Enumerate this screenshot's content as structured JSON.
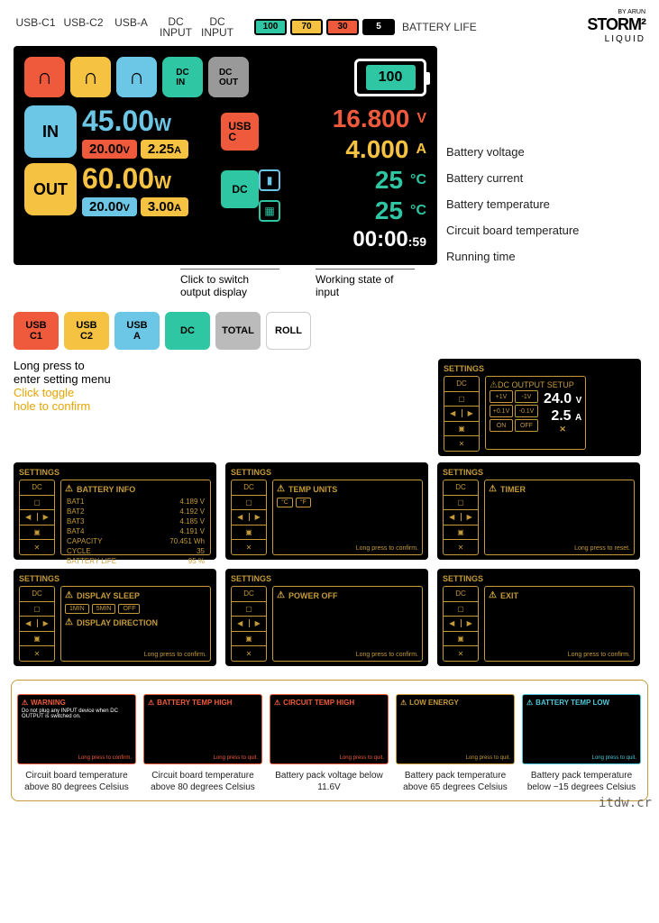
{
  "header": {
    "ports": [
      "USB-C1",
      "USB-C2",
      "USB-A",
      "DC\nINPUT",
      "DC\nINPUT"
    ],
    "pills": [
      {
        "val": "100",
        "bg": "#2fc6a3"
      },
      {
        "val": "70",
        "bg": "#f5c242"
      },
      {
        "val": "30",
        "bg": "#f05a3c"
      },
      {
        "val": "5",
        "bg": "#000",
        "fg": "#fff"
      }
    ],
    "battery_life": "BATTERY LIFE",
    "logo_pre": "BY ARUN",
    "logo_brand": "STORM²",
    "logo_sub": "LIQUID"
  },
  "display": {
    "ports": [
      {
        "bg": "#f05a3c",
        "icon": "⌒"
      },
      {
        "bg": "#f5c242",
        "icon": "⌒"
      },
      {
        "bg": "#6cc7e6",
        "icon": "⌒"
      },
      {
        "bg": "#2fc6a3",
        "label": "DC\nIN"
      },
      {
        "bg": "#999",
        "label": "DC\nOUT"
      }
    ],
    "battery_pct": "100",
    "battery_fill": "#2fc6a3",
    "in": {
      "label": "IN",
      "bg": "#6cc7e6",
      "watts": "45.00",
      "wcolor": "#6cc7e6",
      "v": "20.00",
      "vbg": "#f05a3c",
      "a": "2.25",
      "abg": "#f5c242",
      "tag": "USB\nC",
      "tagbg": "#f05a3c"
    },
    "out": {
      "label": "OUT",
      "bg": "#f5c242",
      "watts": "60.00",
      "wcolor": "#f5c242",
      "v": "20.00",
      "vbg": "#6cc7e6",
      "a": "3.00",
      "abg": "#f5c242",
      "tag": "DC",
      "tagbg": "#2fc6a3"
    },
    "right": [
      {
        "val": "16.800",
        "unit": "V",
        "color": "#f05a3c"
      },
      {
        "val": "4.000",
        "unit": "A",
        "color": "#f5c242"
      },
      {
        "icon": "bat",
        "val": "25",
        "unit": "°C",
        "color": "#2fc6a3",
        "iconcolor": "#6cc7e6"
      },
      {
        "icon": "chip",
        "val": "25",
        "unit": "°C",
        "color": "#2fc6a3",
        "iconcolor": "#2fc6a3"
      }
    ],
    "time": {
      "h": "00",
      "m": "00",
      "s": "59"
    }
  },
  "annotations": [
    "Battery voltage",
    "Battery current",
    "Battery temperature",
    "Circuit board temperature",
    "Running time"
  ],
  "callouts": [
    "Click to switch\noutput display",
    "Working state of\ninput"
  ],
  "modes": [
    {
      "l1": "USB",
      "l2": "C1",
      "bg": "#f05a3c",
      "fg": "#000"
    },
    {
      "l1": "USB",
      "l2": "C2",
      "bg": "#f5c242",
      "fg": "#000"
    },
    {
      "l1": "USB",
      "l2": "A",
      "bg": "#6cc7e6",
      "fg": "#000"
    },
    {
      "l1": "DC",
      "l2": "",
      "bg": "#2fc6a3",
      "fg": "#000"
    },
    {
      "l1": "TOTAL",
      "l2": "",
      "bg": "#bbb",
      "fg": "#000"
    },
    {
      "l1": "ROLL",
      "l2": "",
      "bg": "#fff",
      "fg": "#000",
      "border": "#ccc"
    }
  ],
  "instructions": {
    "line1": "Long press to",
    "line2": "enter setting menu",
    "line3": "Click toggle",
    "line4": "hole to confirm"
  },
  "dc_setup": {
    "hdr": "SETTINGS",
    "title": "DC OUTPUT SETUP",
    "btns": [
      [
        "+1V",
        "-1V"
      ],
      [
        "+0.1V",
        "-0.1V"
      ],
      [
        "ON",
        "OFF"
      ]
    ],
    "v": "24.0",
    "a": "2.5",
    "x": "✕"
  },
  "panels": [
    {
      "hdr": "SETTINGS",
      "title": "BATTERY INFO",
      "rows": [
        [
          "BAT1",
          "4.189 V"
        ],
        [
          "BAT2",
          "4.192 V"
        ],
        [
          "BAT3",
          "4.185 V"
        ],
        [
          "BAT4",
          "4.191 V"
        ],
        [
          "CAPACITY",
          "70.451 Wh"
        ],
        [
          "CYCLE",
          "35"
        ],
        [
          "BATTERY LIFE",
          "95 %"
        ]
      ]
    },
    {
      "hdr": "SETTINGS",
      "title": "TEMP UNITS",
      "opts": [
        "°C",
        "°F"
      ],
      "footer": "Long press to confirm."
    },
    {
      "hdr": "SETTINGS",
      "title": "TIMER",
      "footer": "Long press to reset."
    },
    {
      "hdr": "SETTINGS",
      "title": "DISPLAY SLEEP",
      "opts": [
        "1MIN",
        "5MIN",
        "OFF"
      ],
      "title2": "DISPLAY DIRECTION",
      "footer": "Long press to confirm."
    },
    {
      "hdr": "SETTINGS",
      "title": "POWER OFF",
      "footer": "Long press to confirm."
    },
    {
      "hdr": "SETTINGS",
      "title": "EXIT",
      "footer": "Long press to confirm."
    }
  ],
  "nav": [
    "DC",
    "▢",
    "◀ ▶",
    "▣",
    "✕"
  ],
  "warnings": [
    {
      "title": "WARNING",
      "body": "Do not plug any INPUT device when DC OUTPUT is switched on.",
      "foot": "Long press to confirm.",
      "color": "#f05a3c",
      "desc": "Circuit board temperature above 80 degrees Celsius"
    },
    {
      "title": "BATTERY TEMP HIGH",
      "foot": "Long press to quit.",
      "color": "#f05a3c",
      "desc": "Circuit board temperature above 80 degrees Celsius"
    },
    {
      "title": "CIRCUIT TEMP HIGH",
      "foot": "Long press to quit.",
      "color": "#f05a3c",
      "desc": "Battery pack voltage below 11.6V"
    },
    {
      "title": "LOW ENERGY",
      "foot": "Long press to quit.",
      "color": "#c49a3a",
      "desc": "Battery pack temperature above 65 degrees Celsius"
    },
    {
      "title": "BATTERY TEMP LOW",
      "foot": "Long press to quit.",
      "color": "#4fc6d6",
      "desc": "Battery pack temperature below −15 degrees Celsius"
    }
  ],
  "watermark": "itdw.cr"
}
